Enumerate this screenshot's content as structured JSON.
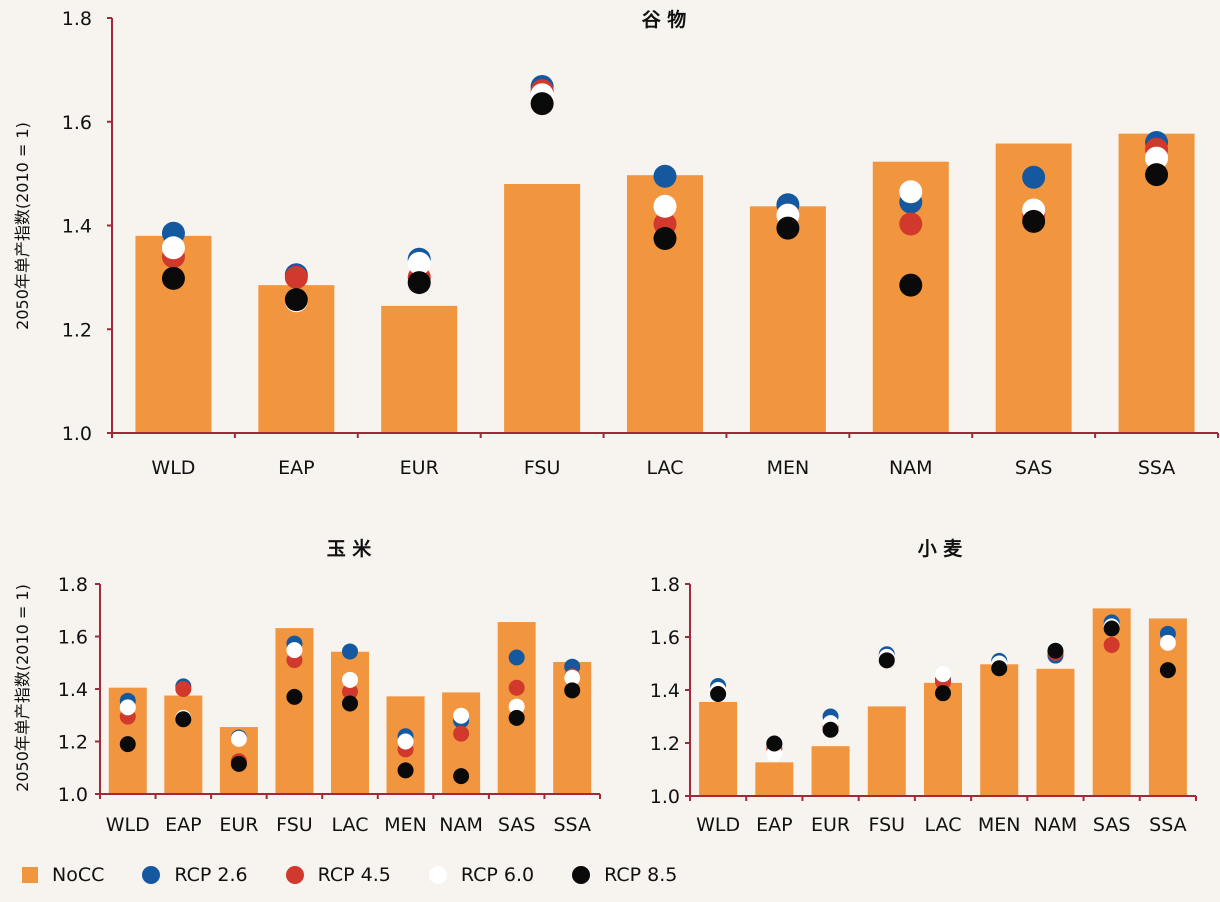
{
  "colors": {
    "background": "#f7f3ef",
    "bar": "#f2953f",
    "axis": "#a3283a",
    "rcp26": "#1459a0",
    "rcp45": "#d0392b",
    "rcp60": "#ffffff",
    "rcp85": "#0a0a0a"
  },
  "legend": [
    {
      "key": "NoCC",
      "label": "NoCC",
      "shape": "square",
      "color": "#f2953f"
    },
    {
      "key": "rcp26",
      "label": "RCP 2.6",
      "shape": "circle",
      "color": "#1459a0"
    },
    {
      "key": "rcp45",
      "label": "RCP 4.5",
      "shape": "circle",
      "color": "#d0392b"
    },
    {
      "key": "rcp60",
      "label": "RCP 6.0",
      "shape": "circle",
      "color": "#ffffff"
    },
    {
      "key": "rcp85",
      "label": "RCP 8.5",
      "shape": "circle",
      "color": "#0a0a0a"
    }
  ],
  "chart_data": [
    {
      "type": "bar",
      "title": "谷 物",
      "ylabel": "2050年单产指数(2010 = 1)",
      "ylim": [
        1.0,
        1.8
      ],
      "yticks": [
        "1.0",
        "1.2",
        "1.4",
        "1.6",
        "1.8"
      ],
      "categories": [
        "WLD",
        "EAP",
        "EUR",
        "FSU",
        "LAC",
        "MEN",
        "NAM",
        "SAS",
        "SSA"
      ],
      "bars": {
        "name": "NoCC",
        "values": [
          1.38,
          1.285,
          1.245,
          1.48,
          1.497,
          1.437,
          1.523,
          1.558,
          1.577
        ]
      },
      "series": [
        {
          "name": "RCP 2.6",
          "key": "rcp26",
          "values": [
            1.385,
            1.305,
            1.335,
            1.668,
            1.495,
            1.44,
            1.445,
            1.493,
            1.56
          ]
        },
        {
          "name": "RCP 4.5",
          "key": "rcp45",
          "values": [
            1.34,
            1.3,
            1.3,
            1.66,
            1.403,
            1.42,
            1.403,
            1.42,
            1.547
          ]
        },
        {
          "name": "RCP 6.0",
          "key": "rcp60",
          "values": [
            1.357,
            1.255,
            1.327,
            1.652,
            1.437,
            1.42,
            1.465,
            1.43,
            1.53
          ]
        },
        {
          "name": "RCP 8.5",
          "key": "rcp85",
          "values": [
            1.298,
            1.257,
            1.29,
            1.635,
            1.375,
            1.395,
            1.285,
            1.408,
            1.498
          ]
        }
      ]
    },
    {
      "type": "bar",
      "title": "玉 米",
      "ylabel": "2050年单产指数(2010 = 1)",
      "ylim": [
        1.0,
        1.8
      ],
      "yticks": [
        "1.0",
        "1.2",
        "1.4",
        "1.6",
        "1.8"
      ],
      "categories": [
        "WLD",
        "EAP",
        "EUR",
        "FSU",
        "LAC",
        "MEN",
        "NAM",
        "SAS",
        "SSA"
      ],
      "bars": {
        "name": "NoCC",
        "values": [
          1.405,
          1.375,
          1.255,
          1.632,
          1.542,
          1.372,
          1.387,
          1.655,
          1.503
        ]
      },
      "series": [
        {
          "name": "RCP 2.6",
          "key": "rcp26",
          "values": [
            1.355,
            1.41,
            1.215,
            1.573,
            1.543,
            1.22,
            1.28,
            1.52,
            1.485
          ]
        },
        {
          "name": "RCP 4.5",
          "key": "rcp45",
          "values": [
            1.295,
            1.4,
            1.125,
            1.51,
            1.39,
            1.17,
            1.23,
            1.405,
            1.448
          ]
        },
        {
          "name": "RCP 6.0",
          "key": "rcp60",
          "values": [
            1.33,
            1.29,
            1.21,
            1.548,
            1.435,
            1.2,
            1.298,
            1.333,
            1.443
          ]
        },
        {
          "name": "RCP 8.5",
          "key": "rcp85",
          "values": [
            1.19,
            1.285,
            1.115,
            1.37,
            1.345,
            1.09,
            1.068,
            1.29,
            1.395
          ]
        }
      ]
    },
    {
      "type": "bar",
      "title": "小 麦",
      "ylabel": "",
      "ylim": [
        1.0,
        1.8
      ],
      "yticks": [
        "1.0",
        "1.2",
        "1.4",
        "1.6",
        "1.8"
      ],
      "categories": [
        "WLD",
        "EAP",
        "EUR",
        "FSU",
        "LAC",
        "MEN",
        "NAM",
        "SAS",
        "SSA"
      ],
      "bars": {
        "name": "NoCC",
        "values": [
          1.355,
          1.127,
          1.188,
          1.338,
          1.427,
          1.497,
          1.48,
          1.708,
          1.67
        ]
      },
      "series": [
        {
          "name": "RCP 2.6",
          "key": "rcp26",
          "values": [
            1.415,
            1.195,
            1.3,
            1.535,
            1.44,
            1.51,
            1.53,
            1.655,
            1.612
          ]
        },
        {
          "name": "RCP 4.5",
          "key": "rcp45",
          "values": [
            1.395,
            1.18,
            1.265,
            1.525,
            1.43,
            1.495,
            1.54,
            1.57,
            1.578
          ]
        },
        {
          "name": "RCP 6.0",
          "key": "rcp60",
          "values": [
            1.4,
            1.16,
            1.275,
            1.525,
            1.46,
            1.5,
            1.555,
            1.64,
            1.578
          ]
        },
        {
          "name": "RCP 8.5",
          "key": "rcp85",
          "values": [
            1.385,
            1.198,
            1.25,
            1.512,
            1.388,
            1.482,
            1.548,
            1.632,
            1.475
          ]
        }
      ]
    }
  ]
}
